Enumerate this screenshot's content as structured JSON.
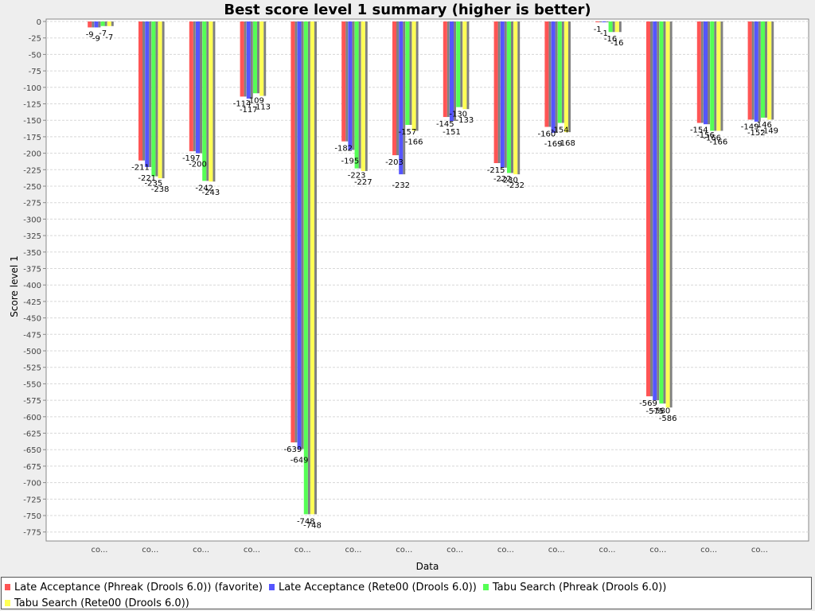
{
  "chart_data": {
    "type": "bar",
    "title": "Best score level 1 summary (higher is better)",
    "xlabel": "Data",
    "ylabel": "Score level 1",
    "ylim": [
      -785,
      0
    ],
    "ytick_step": 25,
    "grid": true,
    "legend_position": "bottom",
    "categories": [
      "co...",
      "co...",
      "co...",
      "co...",
      "co...",
      "co...",
      "co...",
      "co...",
      "co...",
      "co...",
      "co...",
      "co...",
      "co...",
      "co..."
    ],
    "series": [
      {
        "name": "Late Acceptance (Phreak (Drools 6.0)) (favorite)",
        "color": "#ff5555",
        "values": [
          -9,
          -211,
          -197,
          -114,
          -639,
          -182,
          -203,
          -145,
          -215,
          -160,
          -1,
          -569,
          -154,
          -149
        ]
      },
      {
        "name": "Late Acceptance (Rete00 (Drools 6.0))",
        "color": "#5555ff",
        "values": [
          -9,
          -221,
          -200,
          -117,
          -649,
          -195,
          -232,
          -151,
          -222,
          -169,
          -1,
          -575,
          -156,
          -152
        ]
      },
      {
        "name": "Tabu Search (Phreak (Drools 6.0))",
        "color": "#55ff55",
        "values": [
          -7,
          -235,
          -242,
          -109,
          -748,
          -223,
          -157,
          -130,
          -230,
          -154,
          -16,
          -580,
          -166,
          -146
        ]
      },
      {
        "name": "Tabu Search (Rete00 (Drools 6.0))",
        "color": "#ffff55",
        "values": [
          -7,
          -238,
          -243,
          -113,
          -748,
          -227,
          -166,
          -133,
          -232,
          -168,
          -16,
          -586,
          -166,
          -149
        ]
      }
    ]
  }
}
